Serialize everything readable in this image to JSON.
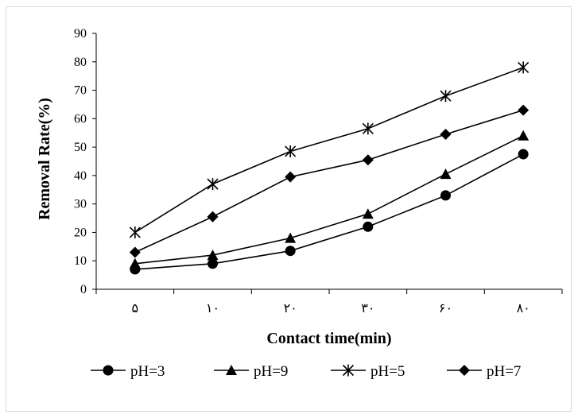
{
  "chart_data": {
    "type": "line",
    "categories": [
      "۵",
      "۱۰",
      "۲۰",
      "۳۰",
      "۶۰",
      "۸۰"
    ],
    "series": [
      {
        "name": "pH=3",
        "marker": "circle",
        "values": [
          7,
          9,
          13.5,
          22,
          33,
          47.5
        ]
      },
      {
        "name": "pH=9",
        "marker": "triangle",
        "values": [
          9,
          12,
          18,
          26.5,
          40.5,
          54
        ]
      },
      {
        "name": "pH=5",
        "marker": "asterisk",
        "values": [
          20,
          37,
          48.5,
          56.5,
          68,
          78
        ]
      },
      {
        "name": "pH=7",
        "marker": "diamond",
        "values": [
          13,
          25.5,
          39.5,
          45.5,
          54.5,
          63
        ]
      }
    ],
    "xlabel": "Contact time(min)",
    "ylabel": "Removal Rate(%)",
    "ylim": [
      0,
      90
    ],
    "yticks": [
      "0",
      "10",
      "20",
      "30",
      "40",
      "50",
      "60",
      "70",
      "80",
      "90"
    ],
    "grid": false,
    "legend_position": "bottom",
    "line_color": "#000000"
  }
}
